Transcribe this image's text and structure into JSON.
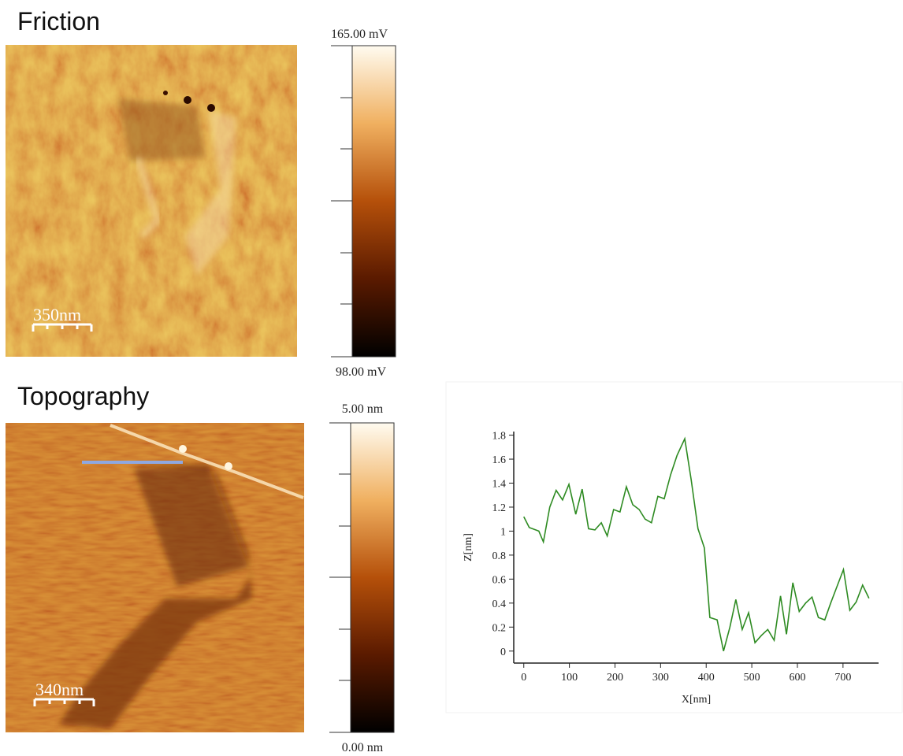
{
  "panels": {
    "friction": {
      "title": "Friction",
      "colorbar_max": "165.00 mV",
      "colorbar_min": "98.00 mV",
      "scale_bar": "350nm"
    },
    "topography": {
      "title": "Topography",
      "colorbar_max": "5.00 nm",
      "colorbar_min": "0.00 nm",
      "scale_bar": "340nm"
    }
  },
  "chart_data": {
    "type": "line",
    "x_label": "X[nm]",
    "y_label": "Z[nm]",
    "x": [
      0,
      12,
      33,
      43,
      57,
      71,
      85,
      99,
      114,
      128,
      142,
      156,
      170,
      183,
      197,
      211,
      225,
      239,
      253,
      266,
      280,
      294,
      308,
      322,
      336,
      353,
      367,
      382,
      396,
      408,
      424,
      438,
      452,
      465,
      479,
      493,
      507,
      521,
      535,
      549,
      563,
      576,
      590,
      604,
      618,
      632,
      646,
      660,
      673,
      687,
      701,
      715,
      729,
      743,
      757
    ],
    "series": [
      {
        "color": "#2e8b22",
        "values": [
          1.12,
          1.03,
          1.0,
          0.91,
          1.2,
          1.34,
          1.26,
          1.39,
          1.14,
          1.35,
          1.02,
          1.01,
          1.07,
          0.96,
          1.18,
          1.16,
          1.37,
          1.22,
          1.18,
          1.1,
          1.07,
          1.29,
          1.27,
          1.47,
          1.63,
          1.77,
          1.43,
          1.02,
          0.86,
          0.28,
          0.26,
          0.0,
          0.2,
          0.43,
          0.18,
          0.32,
          0.07,
          0.13,
          0.18,
          0.09,
          0.46,
          0.14,
          0.57,
          0.33,
          0.4,
          0.45,
          0.28,
          0.26,
          0.4,
          0.54,
          0.68,
          0.34,
          0.41,
          0.55,
          0.44
        ]
      }
    ],
    "xlim": [
      -22,
      778
    ],
    "ylim": [
      -0.1,
      1.83
    ],
    "xticks": [
      0,
      100,
      200,
      300,
      400,
      500,
      600,
      700
    ],
    "yticks": [
      0,
      0.2,
      0.4,
      0.6,
      0.8,
      1,
      1.2,
      1.4,
      1.6,
      1.8
    ]
  }
}
